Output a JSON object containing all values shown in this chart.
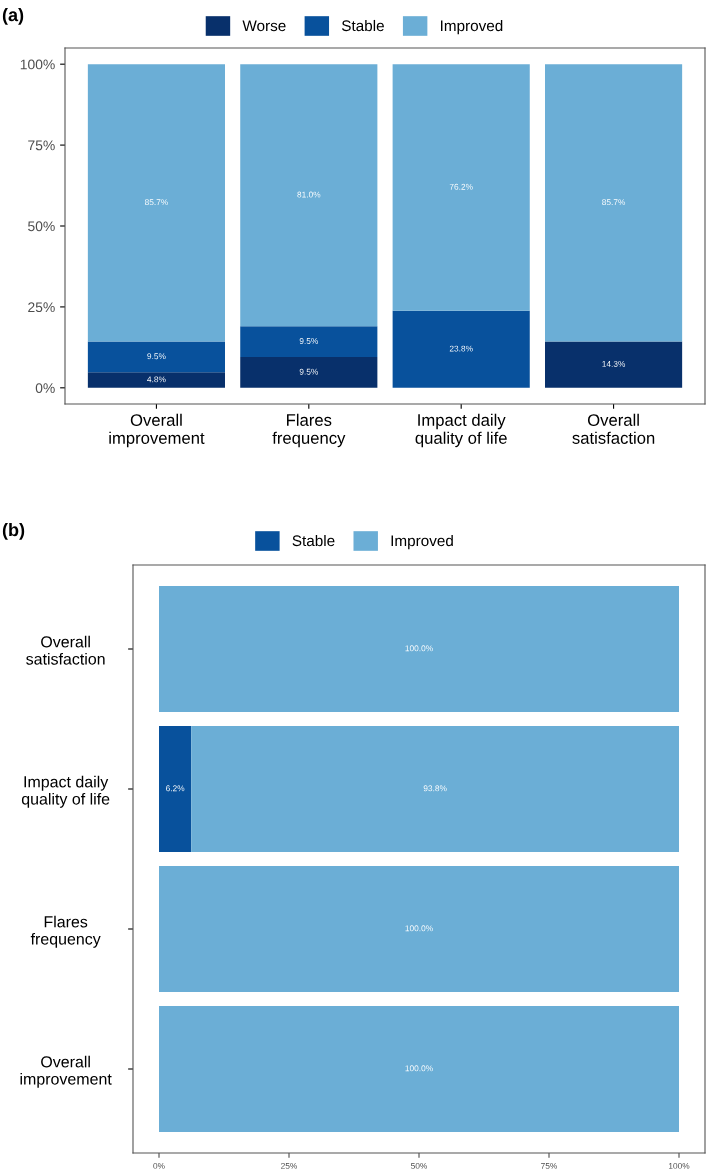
{
  "chart_data": [
    {
      "type": "bar",
      "title": "(a)",
      "stacked": true,
      "legend": "top",
      "categories": [
        "Overall\nimprovement",
        "Flares\nfrequency",
        "Impact daily\nquality of life",
        "Overall\nsatisfaction"
      ],
      "series": [
        {
          "name": "Worse",
          "color": "#08306b",
          "values": [
            4.8,
            9.5,
            0,
            14.3
          ],
          "value_labels": [
            "4.8%",
            "9.5%",
            null,
            "14.3%"
          ]
        },
        {
          "name": "Stable",
          "color": "#08519c",
          "values": [
            9.5,
            9.5,
            23.8,
            0
          ],
          "value_labels": [
            "9.5%",
            "9.5%",
            "23.8%",
            null
          ]
        },
        {
          "name": "Improved",
          "color": "#6baed6",
          "values": [
            85.7,
            81.0,
            76.2,
            85.7
          ],
          "value_labels": [
            "85.7%",
            "81.0%",
            "76.2%",
            "85.7%"
          ]
        }
      ],
      "ylim": [
        -5,
        105
      ],
      "yticks": [
        {
          "value": 0,
          "label": "0%"
        },
        {
          "value": 25,
          "label": "25%"
        },
        {
          "value": 50,
          "label": "50%"
        },
        {
          "value": 75,
          "label": "75%"
        },
        {
          "value": 100,
          "label": "100%"
        }
      ],
      "grid": false
    },
    {
      "type": "bar",
      "title": "(b)",
      "stacked": true,
      "orientation": "horizontal",
      "legend": "top",
      "categories": [
        "Overall\nsatisfaction",
        "Impact daily\nquality of life",
        "Flares\nfrequency",
        "Overall\nimprovement"
      ],
      "series": [
        {
          "name": "Stable",
          "color": "#08519c",
          "values": [
            0,
            6.2,
            0,
            0
          ],
          "value_labels": [
            null,
            "6.2%",
            null,
            null
          ]
        },
        {
          "name": "Improved",
          "color": "#6baed6",
          "values": [
            100,
            93.8,
            100,
            100
          ],
          "value_labels": [
            "100.0%",
            "93.8%",
            "100.0%",
            "100.0%"
          ]
        }
      ],
      "xlim": [
        -5,
        105
      ],
      "xticks": [
        {
          "value": 0,
          "label": "0%"
        },
        {
          "value": 25,
          "label": "25%"
        },
        {
          "value": 50,
          "label": "50%"
        },
        {
          "value": 75,
          "label": "75%"
        },
        {
          "value": 100,
          "label": "100%"
        }
      ],
      "grid": false
    }
  ]
}
